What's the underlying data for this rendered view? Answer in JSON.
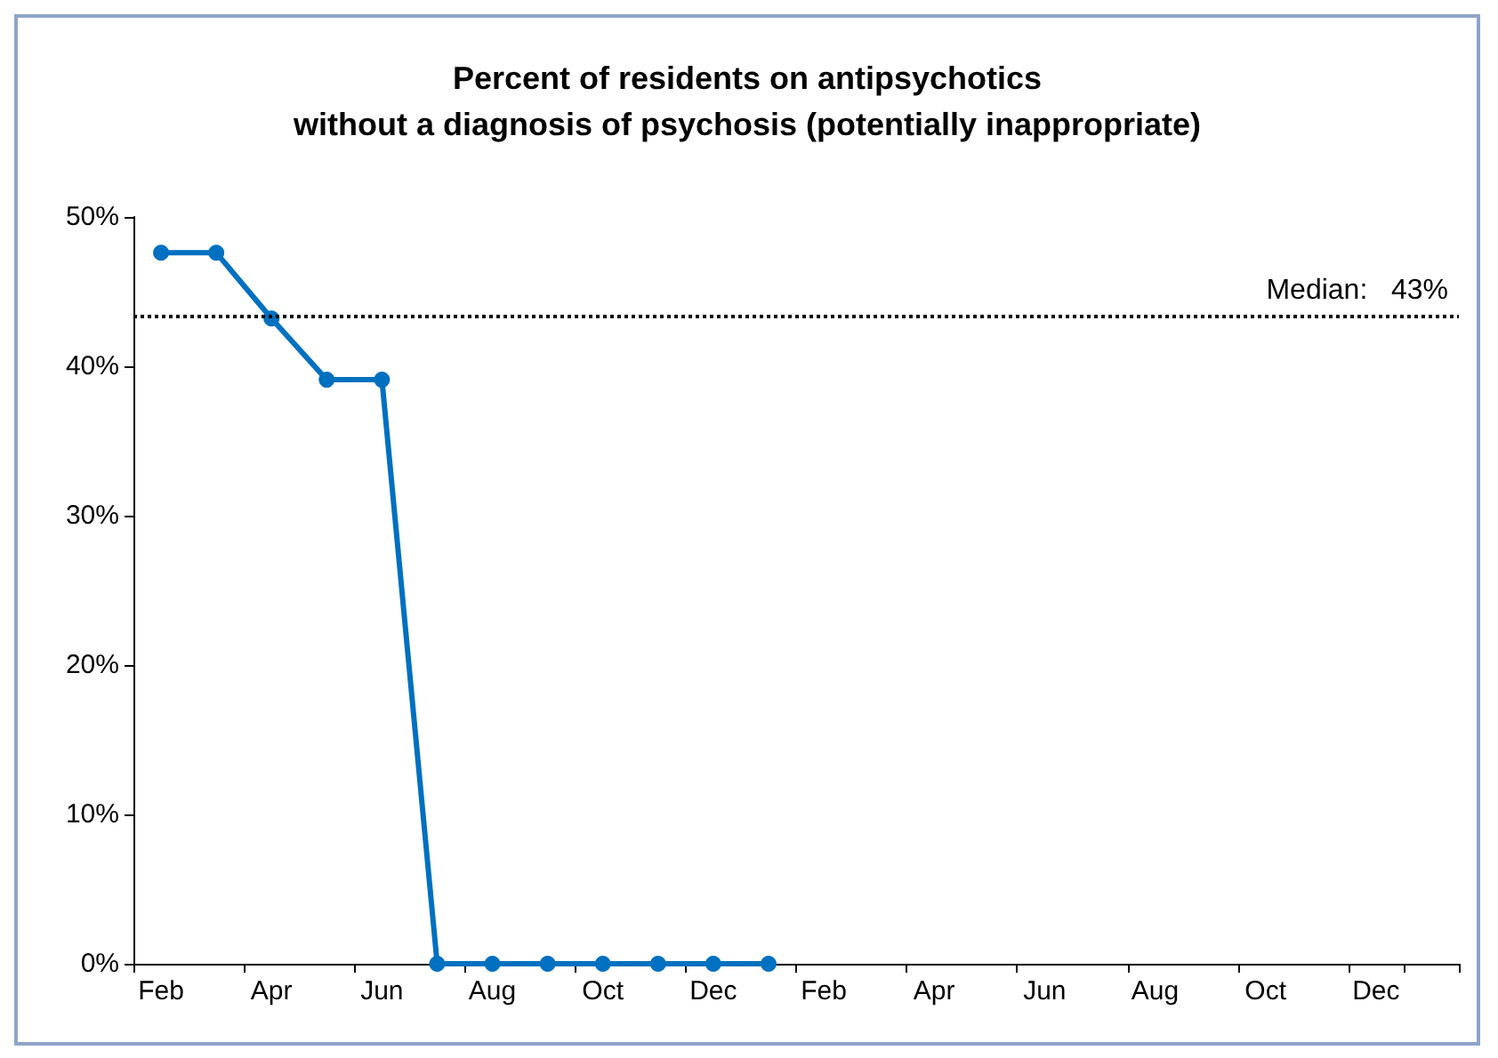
{
  "chart_data": {
    "type": "line",
    "title": "Percent of residents on antipsychotics\nwithout a diagnosis of psychosis (potentially inappropriate)",
    "categories": [
      "Feb",
      null,
      "Apr",
      null,
      "Jun",
      null,
      "Aug",
      null,
      "Oct",
      null,
      "Dec",
      null,
      "Feb",
      null,
      "Apr",
      null,
      "Jun",
      null,
      "Aug",
      null,
      "Oct",
      null,
      "Dec",
      null
    ],
    "series": [
      {
        "color": "#0070c0",
        "values": [
          47.6,
          47.6,
          43.2,
          39.1,
          39.1,
          0,
          0,
          0,
          0,
          0,
          0,
          0,
          null,
          null,
          null,
          null,
          null,
          null,
          null,
          null,
          null,
          null,
          null,
          null
        ]
      }
    ],
    "ylim": [
      0,
      50
    ],
    "yticks": [
      {
        "value": 0,
        "label": "0%"
      },
      {
        "value": 10,
        "label": "10%"
      },
      {
        "value": 20,
        "label": "20%"
      },
      {
        "value": 30,
        "label": "30%"
      },
      {
        "value": 40,
        "label": "40%"
      },
      {
        "value": 50,
        "label": "50%"
      }
    ],
    "ref_lines": [
      {
        "axis": "y",
        "value": 43.4,
        "label": "Median:   43%",
        "color": "#000000",
        "line_style": "dotted"
      }
    ],
    "grid": false,
    "marker": "circle",
    "line_style": "solid"
  }
}
